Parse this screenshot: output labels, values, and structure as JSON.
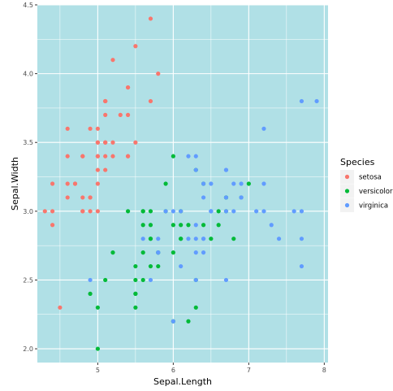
{
  "chart_data": {
    "type": "scatter",
    "title": "",
    "xlabel": "Sepal.Length",
    "ylabel": "Sepal.Width",
    "xlim": [
      4.2,
      8.05
    ],
    "ylim": [
      1.9,
      4.5
    ],
    "x_ticks": [
      5,
      6,
      7,
      8
    ],
    "y_ticks": [
      2.0,
      2.5,
      3.0,
      3.5,
      4.0,
      4.5
    ],
    "x_tick_labels": [
      "5",
      "6",
      "7",
      "8"
    ],
    "y_tick_labels": [
      "2.0",
      "2.5",
      "3.0",
      "3.5",
      "4.0",
      "4.5"
    ],
    "panel_background": "#b0e0e6",
    "grid": true,
    "grid_color": "#ffffff",
    "legend": {
      "title": "Species",
      "position": "right"
    },
    "series": [
      {
        "name": "setosa",
        "color": "#f8766d",
        "points": [
          [
            5.1,
            3.5
          ],
          [
            4.9,
            3.0
          ],
          [
            4.7,
            3.2
          ],
          [
            4.6,
            3.1
          ],
          [
            5.0,
            3.6
          ],
          [
            5.4,
            3.9
          ],
          [
            4.6,
            3.4
          ],
          [
            5.0,
            3.4
          ],
          [
            4.4,
            2.9
          ],
          [
            4.9,
            3.1
          ],
          [
            5.4,
            3.7
          ],
          [
            4.8,
            3.4
          ],
          [
            4.8,
            3.0
          ],
          [
            4.3,
            3.0
          ],
          [
            5.8,
            4.0
          ],
          [
            5.7,
            4.4
          ],
          [
            5.4,
            3.9
          ],
          [
            5.1,
            3.5
          ],
          [
            5.7,
            3.8
          ],
          [
            5.1,
            3.8
          ],
          [
            5.4,
            3.4
          ],
          [
            5.1,
            3.7
          ],
          [
            4.6,
            3.6
          ],
          [
            5.1,
            3.3
          ],
          [
            4.8,
            3.4
          ],
          [
            5.0,
            3.0
          ],
          [
            5.0,
            3.4
          ],
          [
            5.2,
            3.5
          ],
          [
            5.2,
            3.4
          ],
          [
            4.7,
            3.2
          ],
          [
            4.8,
            3.1
          ],
          [
            5.4,
            3.4
          ],
          [
            5.2,
            4.1
          ],
          [
            5.5,
            4.2
          ],
          [
            4.9,
            3.1
          ],
          [
            5.0,
            3.2
          ],
          [
            5.5,
            3.5
          ],
          [
            4.9,
            3.6
          ],
          [
            4.4,
            3.0
          ],
          [
            5.1,
            3.4
          ],
          [
            5.0,
            3.5
          ],
          [
            4.5,
            2.3
          ],
          [
            4.4,
            3.2
          ],
          [
            5.0,
            3.5
          ],
          [
            5.1,
            3.8
          ],
          [
            4.8,
            3.0
          ],
          [
            5.1,
            3.8
          ],
          [
            4.6,
            3.2
          ],
          [
            5.3,
            3.7
          ],
          [
            5.0,
            3.3
          ]
        ]
      },
      {
        "name": "versicolor",
        "color": "#00ba38",
        "points": [
          [
            7.0,
            3.2
          ],
          [
            6.4,
            3.2
          ],
          [
            6.9,
            3.1
          ],
          [
            5.5,
            2.3
          ],
          [
            6.5,
            2.8
          ],
          [
            5.7,
            2.8
          ],
          [
            6.3,
            3.3
          ],
          [
            4.9,
            2.4
          ],
          [
            6.6,
            2.9
          ],
          [
            5.2,
            2.7
          ],
          [
            5.0,
            2.0
          ],
          [
            5.9,
            3.0
          ],
          [
            6.0,
            2.2
          ],
          [
            6.1,
            2.9
          ],
          [
            5.6,
            2.9
          ],
          [
            6.7,
            3.1
          ],
          [
            5.6,
            3.0
          ],
          [
            5.8,
            2.7
          ],
          [
            6.2,
            2.2
          ],
          [
            5.6,
            2.5
          ],
          [
            5.9,
            3.2
          ],
          [
            6.1,
            2.8
          ],
          [
            6.3,
            2.5
          ],
          [
            6.1,
            2.8
          ],
          [
            6.4,
            2.9
          ],
          [
            6.6,
            3.0
          ],
          [
            6.8,
            2.8
          ],
          [
            6.7,
            3.0
          ],
          [
            6.0,
            2.9
          ],
          [
            5.7,
            2.6
          ],
          [
            5.5,
            2.4
          ],
          [
            5.5,
            2.4
          ],
          [
            5.8,
            2.7
          ],
          [
            6.0,
            2.7
          ],
          [
            5.4,
            3.0
          ],
          [
            6.0,
            3.4
          ],
          [
            6.7,
            3.1
          ],
          [
            6.3,
            2.3
          ],
          [
            5.6,
            3.0
          ],
          [
            5.5,
            2.5
          ],
          [
            5.5,
            2.6
          ],
          [
            6.1,
            3.0
          ],
          [
            5.8,
            2.6
          ],
          [
            5.0,
            2.3
          ],
          [
            5.6,
            2.7
          ],
          [
            5.7,
            3.0
          ],
          [
            5.7,
            2.9
          ],
          [
            6.2,
            2.9
          ],
          [
            5.1,
            2.5
          ],
          [
            5.7,
            2.8
          ]
        ]
      },
      {
        "name": "virginica",
        "color": "#619cff",
        "points": [
          [
            6.3,
            3.3
          ],
          [
            5.8,
            2.7
          ],
          [
            7.1,
            3.0
          ],
          [
            6.3,
            2.9
          ],
          [
            6.5,
            3.0
          ],
          [
            7.6,
            3.0
          ],
          [
            4.9,
            2.5
          ],
          [
            7.3,
            2.9
          ],
          [
            6.7,
            2.5
          ],
          [
            7.2,
            3.6
          ],
          [
            6.5,
            3.2
          ],
          [
            6.4,
            2.7
          ],
          [
            6.8,
            3.0
          ],
          [
            5.7,
            2.5
          ],
          [
            5.8,
            2.8
          ],
          [
            6.4,
            3.2
          ],
          [
            6.5,
            3.0
          ],
          [
            7.7,
            3.8
          ],
          [
            7.7,
            2.6
          ],
          [
            6.0,
            2.2
          ],
          [
            6.9,
            3.2
          ],
          [
            5.6,
            2.8
          ],
          [
            7.7,
            2.8
          ],
          [
            6.3,
            2.7
          ],
          [
            6.7,
            3.3
          ],
          [
            7.2,
            3.2
          ],
          [
            6.2,
            2.8
          ],
          [
            6.1,
            3.0
          ],
          [
            6.4,
            2.8
          ],
          [
            7.2,
            3.0
          ],
          [
            7.4,
            2.8
          ],
          [
            7.9,
            3.8
          ],
          [
            6.4,
            2.8
          ],
          [
            6.3,
            2.8
          ],
          [
            6.1,
            2.6
          ],
          [
            7.7,
            3.0
          ],
          [
            6.3,
            3.4
          ],
          [
            6.4,
            3.1
          ],
          [
            6.0,
            3.0
          ],
          [
            6.9,
            3.1
          ],
          [
            6.7,
            3.1
          ],
          [
            6.9,
            3.1
          ],
          [
            5.8,
            2.7
          ],
          [
            6.8,
            3.2
          ],
          [
            6.7,
            3.3
          ],
          [
            6.7,
            3.0
          ],
          [
            6.3,
            2.5
          ],
          [
            6.5,
            3.0
          ],
          [
            6.2,
            3.4
          ],
          [
            5.9,
            3.0
          ]
        ]
      }
    ]
  }
}
